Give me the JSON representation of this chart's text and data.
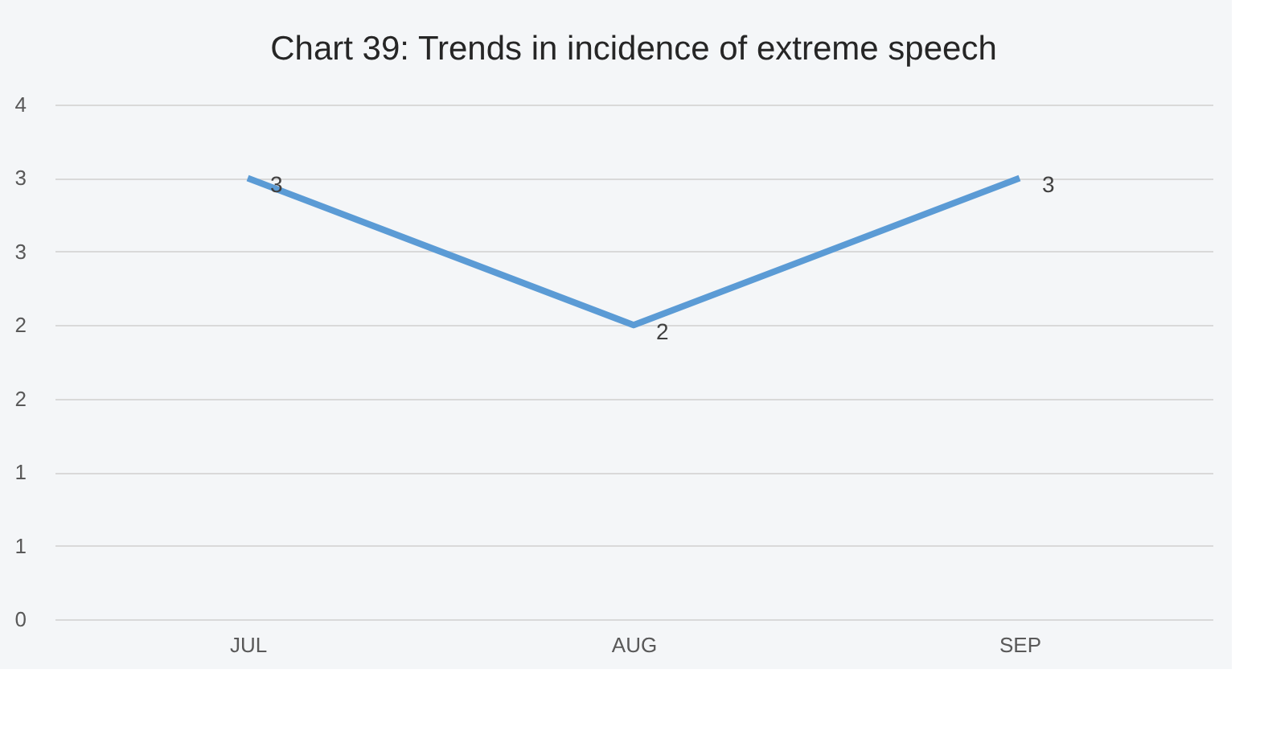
{
  "chart_data": {
    "type": "line",
    "title": "Chart 39: Trends in incidence of extreme speech",
    "categories": [
      "JUL",
      "AUG",
      "SEP"
    ],
    "series": [
      {
        "color": "#5b9bd5",
        "values": [
          3,
          2,
          3
        ]
      }
    ],
    "ylim": [
      0,
      3.5
    ],
    "yticks": [
      0,
      {
        "value": 0.5,
        "label": "1"
      },
      1,
      {
        "value": 1.5,
        "label": "2"
      },
      2,
      {
        "value": 2.5,
        "label": "3"
      },
      3,
      {
        "value": 3.5,
        "label": "4"
      }
    ],
    "data_labels": true,
    "grid": "y",
    "marker": "none",
    "line_style": "solid"
  }
}
